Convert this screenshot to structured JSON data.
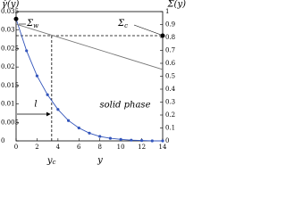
{
  "chart_data": {
    "type": "line",
    "y_label": "γ̇(y)",
    "y2_label": "Σ(y)",
    "x_label": "y",
    "xlim": [
      0,
      14
    ],
    "xticks": [
      0,
      2,
      4,
      6,
      8,
      10,
      12,
      14
    ],
    "ylim": [
      0,
      0.035
    ],
    "yticks": [
      0,
      0.005,
      0.01,
      0.015,
      0.02,
      0.025,
      0.03,
      0.035
    ],
    "y2lim": [
      0,
      1
    ],
    "y2ticks": [
      0,
      0.1,
      0.2,
      0.3,
      0.4,
      0.5,
      0.6,
      0.7,
      0.8,
      0.9,
      1
    ],
    "series": [
      {
        "color": "#3355bb",
        "x": [
          0,
          1,
          2,
          3,
          4,
          5,
          6,
          7,
          8,
          9,
          10,
          11,
          12,
          13,
          14
        ],
        "values": [
          0.033,
          0.0244,
          0.0176,
          0.0125,
          0.0085,
          0.0055,
          0.0035,
          0.0021,
          0.0012,
          0.0007,
          0.0004,
          0.0002,
          0.0001,
          0,
          0
        ]
      },
      {
        "color": "#777777",
        "axis": "y2",
        "x": [
          0,
          14
        ],
        "values": [
          0.903,
          0.552
        ]
      }
    ],
    "critical": {
      "y": 3.4,
      "sigma": 0.814
    },
    "annotations": {
      "sigma_w": {
        "symbol": "Σ",
        "subscript": "w"
      },
      "sigma_c": {
        "symbol": "Σ",
        "subscript": "c"
      },
      "y_c": {
        "symbol": "y",
        "subscript": "c"
      },
      "length": "l",
      "region": "solid phase"
    }
  }
}
